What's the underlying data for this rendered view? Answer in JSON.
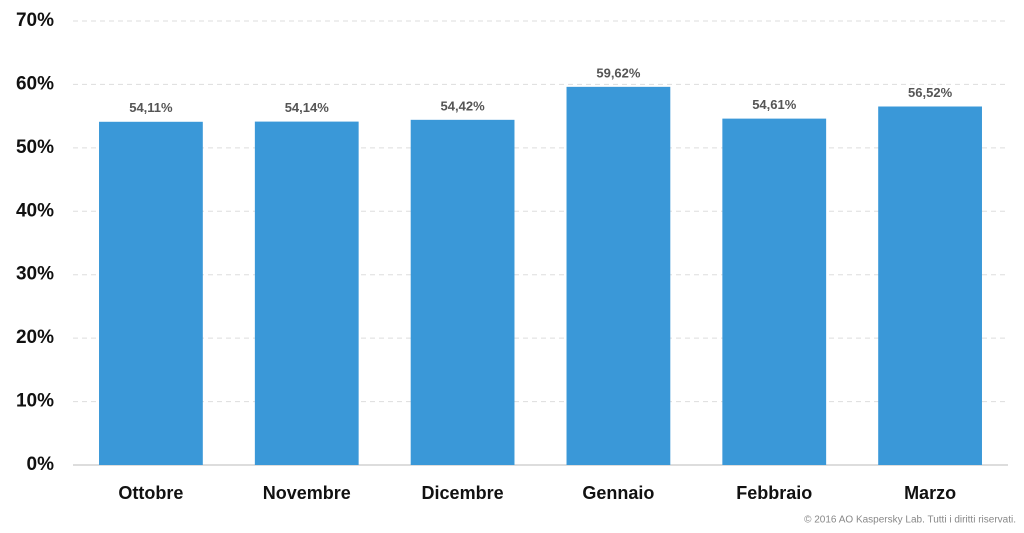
{
  "chart_data": {
    "type": "bar",
    "categories": [
      "Ottobre",
      "Novembre",
      "Dicembre",
      "Gennaio",
      "Febbraio",
      "Marzo"
    ],
    "values": [
      54.11,
      54.14,
      54.42,
      59.62,
      54.61,
      56.52
    ],
    "value_labels": [
      "54,11%",
      "54,14%",
      "54,42%",
      "59,62%",
      "54,61%",
      "56,52%"
    ],
    "color": "#3a98d8",
    "ylim": [
      0,
      70
    ],
    "yticks": [
      {
        "value": 0,
        "label": "0%"
      },
      {
        "value": 10,
        "label": "10%"
      },
      {
        "value": 20,
        "label": "20%"
      },
      {
        "value": 30,
        "label": "30%"
      },
      {
        "value": 40,
        "label": "40%"
      },
      {
        "value": 50,
        "label": "50%"
      },
      {
        "value": 60,
        "label": "60%"
      },
      {
        "value": 70,
        "label": "70%"
      }
    ],
    "grid": true,
    "credit": "© 2016 AO Kaspersky Lab. Tutti i diritti riservati."
  }
}
